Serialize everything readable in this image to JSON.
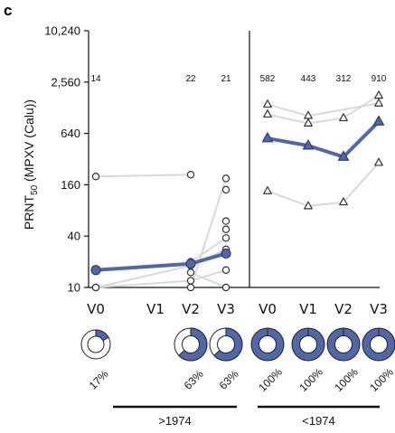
{
  "panel_letter": "c",
  "colors": {
    "accent": "#5068a8",
    "individual_line": "#d9d9d9",
    "marker_stroke": "#333333",
    "axis": "#111111"
  },
  "chart_data": {
    "type": "scatter",
    "ylabel_prefix": "PRNT",
    "ylabel_sub": "50",
    "ylabel_suffix": " (MPXV (Calu))",
    "yscale": "log2",
    "ylim": [
      10,
      10240
    ],
    "yticks": [
      10,
      40,
      160,
      640,
      2560,
      10240
    ],
    "ytick_labels": [
      "10",
      "40",
      "160",
      "640",
      "2,560",
      "10,240"
    ],
    "groups": [
      {
        "label": ">1974",
        "marker": "circle",
        "categories": [
          "V0",
          "V1",
          "V2",
          "V3"
        ],
        "counts": [
          "14",
          "",
          "22",
          "21"
        ],
        "percent_labels": [
          "17%",
          "",
          "63%",
          "63%"
        ],
        "percent_values": [
          17,
          null,
          63,
          63
        ],
        "individuals": [
          [
            {
              "x": "V0",
              "y": 200
            },
            {
              "x": "V2",
              "y": 210
            }
          ],
          [
            {
              "x": "V0",
              "y": 10
            },
            {
              "x": "V2",
              "y": 18
            },
            {
              "x": "V3",
              "y": 28
            }
          ],
          [
            {
              "x": "V0",
              "y": 10
            },
            {
              "x": "V2",
              "y": 12
            },
            {
              "x": "V3",
              "y": 16
            }
          ],
          [
            {
              "x": "V2",
              "y": 15
            },
            {
              "x": "V3",
              "y": 10
            }
          ],
          [
            {
              "x": "V2",
              "y": 20
            },
            {
              "x": "V3",
              "y": 38
            }
          ],
          [
            {
              "x": "V2",
              "y": 10
            },
            {
              "x": "V3",
              "y": 190
            }
          ],
          [
            {
              "x": "V3",
              "y": 140
            }
          ],
          [
            {
              "x": "V3",
              "y": 60
            }
          ],
          [
            {
              "x": "V3",
              "y": 48
            }
          ]
        ],
        "mean": [
          {
            "x": "V0",
            "y": 16
          },
          {
            "x": "V2",
            "y": 19
          },
          {
            "x": "V3",
            "y": 25
          }
        ]
      },
      {
        "label": "<1974",
        "marker": "triangle",
        "categories": [
          "V0",
          "V1",
          "V2",
          "V3"
        ],
        "counts": [
          "582",
          "443",
          "312",
          "910"
        ],
        "percent_labels": [
          "100%",
          "100%",
          "100%",
          "100%"
        ],
        "percent_values": [
          100,
          100,
          100,
          100
        ],
        "individuals": [
          [
            {
              "x": "V0",
              "y": 1400
            },
            {
              "x": "V1",
              "y": 1030
            },
            {
              "x": "V3",
              "y": 1440
            }
          ],
          [
            {
              "x": "V0",
              "y": 1070
            },
            {
              "x": "V1",
              "y": 840
            },
            {
              "x": "V2",
              "y": 970
            },
            {
              "x": "V3",
              "y": 1780
            }
          ],
          [
            {
              "x": "V0",
              "y": 135
            },
            {
              "x": "V1",
              "y": 90
            },
            {
              "x": "V2",
              "y": 100
            },
            {
              "x": "V3",
              "y": 290
            }
          ]
        ],
        "mean": [
          {
            "x": "V0",
            "y": 560
          },
          {
            "x": "V1",
            "y": 460
          },
          {
            "x": "V2",
            "y": 340
          },
          {
            "x": "V3",
            "y": 880
          }
        ]
      }
    ]
  }
}
